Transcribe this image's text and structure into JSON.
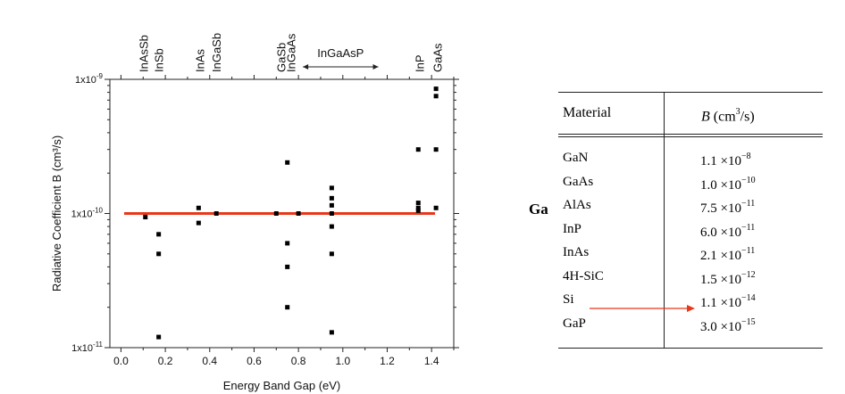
{
  "chart_data": {
    "type": "scatter",
    "title": "",
    "xlabel": "Energy Band Gap (eV)",
    "ylabel": "Radiative Coefficient B (cm³/s)",
    "xlim": [
      -0.05,
      1.5
    ],
    "ylim_log10": [
      -11,
      -9
    ],
    "x_ticks": [
      "0.0",
      "0.2",
      "0.4",
      "0.6",
      "0.8",
      "1.0",
      "1.2",
      "1.4"
    ],
    "y_ticks": [
      {
        "mant": "1x10",
        "exp": "-11",
        "value": 1e-11
      },
      {
        "mant": "1x10",
        "exp": "-10",
        "value": 1e-10
      },
      {
        "mant": "1x10",
        "exp": "-9",
        "value": 1e-09
      }
    ],
    "grid": false,
    "reference_line": {
      "y": 1e-10,
      "color": "#e8371a"
    },
    "material_labels": [
      {
        "text": "InAsSb",
        "x": 0.1
      },
      {
        "text": "InSb",
        "x": 0.17
      },
      {
        "text": "InAs",
        "x": 0.355
      },
      {
        "text": "InGaSb",
        "x": 0.43
      },
      {
        "text": "GaSb",
        "x": 0.72
      },
      {
        "text": "InGaAs",
        "x": 0.765
      },
      {
        "text": "InP",
        "x": 1.345
      },
      {
        "text": "GaAs",
        "x": 1.425
      }
    ],
    "range_label": {
      "text": "InGaAsP",
      "x_from": 0.82,
      "x_to": 1.16
    },
    "points": [
      {
        "x": 0.11,
        "y": 9.4e-11
      },
      {
        "x": 0.17,
        "y": 7e-11
      },
      {
        "x": 0.17,
        "y": 5e-11
      },
      {
        "x": 0.17,
        "y": 1.2e-11
      },
      {
        "x": 0.35,
        "y": 1.1e-10
      },
      {
        "x": 0.35,
        "y": 8.5e-11
      },
      {
        "x": 0.43,
        "y": 1e-10
      },
      {
        "x": 0.7,
        "y": 1e-10
      },
      {
        "x": 0.75,
        "y": 2.4e-10
      },
      {
        "x": 0.75,
        "y": 6e-11
      },
      {
        "x": 0.75,
        "y": 4e-11
      },
      {
        "x": 0.75,
        "y": 2e-11
      },
      {
        "x": 0.8,
        "y": 1e-10
      },
      {
        "x": 0.95,
        "y": 1.55e-10
      },
      {
        "x": 0.95,
        "y": 1.3e-10
      },
      {
        "x": 0.95,
        "y": 1.15e-10
      },
      {
        "x": 0.95,
        "y": 1e-10
      },
      {
        "x": 0.95,
        "y": 8e-11
      },
      {
        "x": 0.95,
        "y": 5e-11
      },
      {
        "x": 0.95,
        "y": 1.3e-11
      },
      {
        "x": 1.34,
        "y": 3e-10
      },
      {
        "x": 1.34,
        "y": 1.2e-10
      },
      {
        "x": 1.34,
        "y": 1.1e-10
      },
      {
        "x": 1.34,
        "y": 1.05e-10
      },
      {
        "x": 1.42,
        "y": 8.5e-10
      },
      {
        "x": 1.42,
        "y": 7.5e-10
      },
      {
        "x": 1.42,
        "y": 3e-10
      },
      {
        "x": 1.42,
        "y": 1.1e-10
      }
    ]
  },
  "table": {
    "header": {
      "material": "Material",
      "b_prefix": "B",
      "b_unit": "(cm",
      "b_unit_sup": "3",
      "b_unit_tail": "/s)"
    },
    "rows": [
      {
        "material": "GaN",
        "mant": "1.1 ×10",
        "exp": "−8"
      },
      {
        "material": "GaAs",
        "mant": "1.0 ×10",
        "exp": "−10"
      },
      {
        "material": "AlAs",
        "mant": "7.5 ×10",
        "exp": "−11"
      },
      {
        "material": "InP",
        "mant": "6.0 ×10",
        "exp": "−11"
      },
      {
        "material": "InAs",
        "mant": "2.1 ×10",
        "exp": "−11"
      },
      {
        "material": "4H-SiC",
        "mant": "1.5 ×10",
        "exp": "−12"
      },
      {
        "material": "Si",
        "mant": "1.1 ×10",
        "exp": "−14"
      },
      {
        "material": "GaP",
        "mant": "3.0 ×10",
        "exp": "−15"
      }
    ]
  },
  "annotations": {
    "ga_label": "Ga",
    "arrow_color": "#e8371a"
  }
}
